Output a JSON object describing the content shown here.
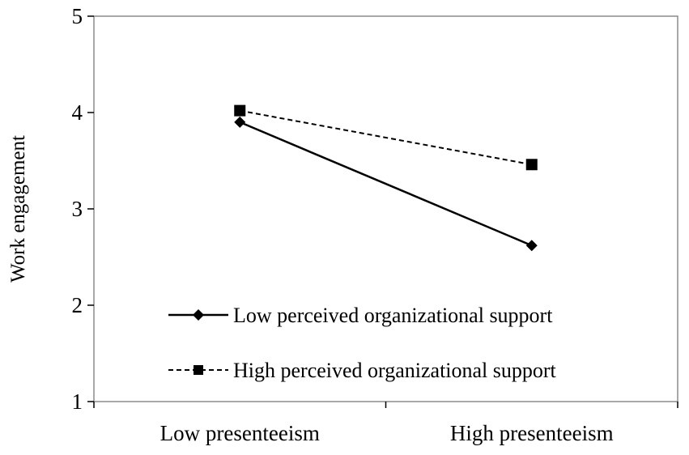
{
  "chart_data": {
    "type": "line",
    "title": "",
    "xlabel": "",
    "ylabel": "Work engagement",
    "categories": [
      "Low presenteeism",
      "High presenteeism"
    ],
    "ylim": [
      1,
      5
    ],
    "yticks": [
      1,
      2,
      3,
      4,
      5
    ],
    "grid": false,
    "legend_position": "bottom-right inside plot",
    "series": [
      {
        "name": "Low perceived organizational support",
        "values": [
          3.9,
          2.62
        ],
        "line_style": "solid",
        "marker": "diamond",
        "color": "#000000"
      },
      {
        "name": "High perceived organizational support",
        "values": [
          4.02,
          3.46
        ],
        "line_style": "dashed",
        "marker": "square",
        "color": "#000000"
      }
    ]
  }
}
